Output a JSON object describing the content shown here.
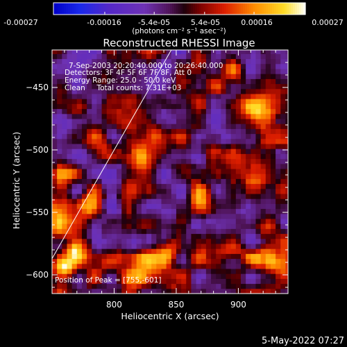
{
  "chart_data": {
    "type": "heatmap",
    "title": "Reconstructed RHESSI Image",
    "xlabel": "Heliocentric X (arcsec)",
    "ylabel": "Heliocentric Y (arcsec)",
    "xlim": [
      750,
      940
    ],
    "ylim": [
      -615,
      -420
    ],
    "x_ticks": [
      800,
      850,
      900
    ],
    "y_ticks": [
      -450,
      -500,
      -550,
      -600
    ],
    "colorbar": {
      "units_label": "(photons cm⁻² s⁻¹ asec⁻²)",
      "range": [
        -0.00027,
        0.00027
      ],
      "ticks_row1": [
        "-0.00027",
        "-0.00016",
        "0.00016",
        "0.00027"
      ],
      "ticks_row1_values": [
        -0.00027,
        -0.00016,
        0.00016,
        0.00027
      ],
      "ticks_row2": [
        "-5.4e-05",
        "5.4e-05"
      ],
      "ticks_row2_values": [
        -5.4e-05,
        5.4e-05
      ]
    },
    "annotations": [
      "7-Sep-2003 20:20:40.000 to 20:26:40.000",
      "Detectors: 3F 4F 5F 6F 7F 8F, Att 0",
      "Energy Range: 25.0 - 50.0 keV",
      "Clean     Total counts: 7.31E+03",
      "Position of Peak = [755,-601]"
    ],
    "peak": {
      "x": 755,
      "y": -601
    },
    "limb_line": [
      [
        750,
        -587
      ],
      [
        846,
        -420
      ]
    ],
    "pixel_size_arcsec": 4,
    "hot_spots": [
      {
        "x": 760,
        "y": -595,
        "peak": 0.00027
      },
      {
        "x": 770,
        "y": -580,
        "peak": 0.00022
      },
      {
        "x": 755,
        "y": -560,
        "peak": 0.00018
      },
      {
        "x": 760,
        "y": -520,
        "peak": 0.00016
      },
      {
        "x": 780,
        "y": -545,
        "peak": 0.00014
      },
      {
        "x": 790,
        "y": -500,
        "peak": 0.00012
      },
      {
        "x": 820,
        "y": -505,
        "peak": 0.00017
      },
      {
        "x": 832,
        "y": -490,
        "peak": 0.00018
      },
      {
        "x": 845,
        "y": -580,
        "peak": 0.00018
      },
      {
        "x": 828,
        "y": -585,
        "peak": 0.00016
      },
      {
        "x": 820,
        "y": -600,
        "peak": 0.00014
      },
      {
        "x": 870,
        "y": -540,
        "peak": 0.00016
      },
      {
        "x": 880,
        "y": -500,
        "peak": 0.00015
      },
      {
        "x": 915,
        "y": -470,
        "peak": 0.00018
      },
      {
        "x": 895,
        "y": -580,
        "peak": 0.00014
      },
      {
        "x": 915,
        "y": -530,
        "peak": 0.00012
      },
      {
        "x": 915,
        "y": -585,
        "peak": 0.0001
      },
      {
        "x": 770,
        "y": -465,
        "peak": 0.00011
      },
      {
        "x": 895,
        "y": -440,
        "peak": 0.0001
      },
      {
        "x": 935,
        "y": -590,
        "peak": 0.0001
      }
    ]
  },
  "footer": {
    "date": "5-May-2022 07:27"
  },
  "colors": {
    "background": "#000000",
    "text": "#ffffff"
  }
}
